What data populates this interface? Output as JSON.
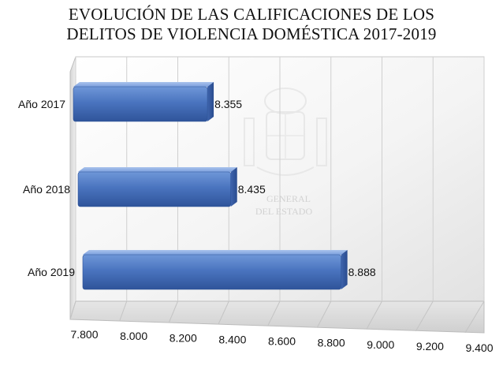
{
  "chart_data": {
    "type": "bar",
    "orientation": "horizontal",
    "title_lines": [
      "EVOLUCIÓN DE LAS CALIFICACIONES DE LOS",
      "DELITOS DE VIOLENCIA DOMÉSTICA 2017-2019"
    ],
    "categories": [
      "Año 2017",
      "Año 2018",
      "Año 2019"
    ],
    "values": [
      8355,
      8435,
      8888
    ],
    "data_labels": [
      "8.355",
      "8.435",
      "8.888"
    ],
    "xlim": [
      7800,
      9400
    ],
    "x_ticks": [
      7800,
      8000,
      8200,
      8400,
      8600,
      8800,
      9000,
      9200,
      9400
    ],
    "x_tick_labels": [
      "7.800",
      "8.000",
      "8.200",
      "8.400",
      "8.600",
      "8.800",
      "9.000",
      "9.200",
      "9.400"
    ],
    "grid": true,
    "style": "3d",
    "bar_color": "#4472C4"
  },
  "watermark": {
    "lines": [
      "GENERAL",
      "DEL ESTADO"
    ]
  }
}
